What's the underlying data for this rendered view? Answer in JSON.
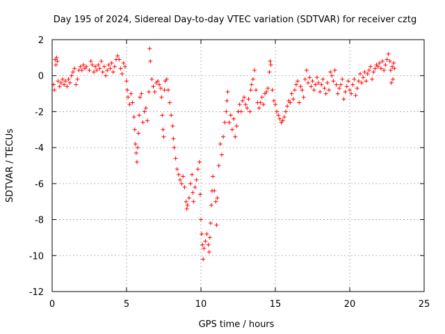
{
  "chart_data": {
    "type": "scatter",
    "title": "Day 195 of 2024, Sidereal Day-to-day VTEC variation (SDTVAR) for receiver cztg",
    "xlabel": "GPS time / hours",
    "ylabel": "SDTVAR / TECUs",
    "xlim": [
      0,
      25
    ],
    "ylim": [
      -12,
      2
    ],
    "xticks": [
      0,
      5,
      10,
      15,
      20,
      25
    ],
    "xtick_labels": [
      "0",
      "5",
      "10",
      "15",
      "20",
      "25"
    ],
    "yticks": [
      2,
      0,
      -2,
      -4,
      -6,
      -8,
      -10,
      -12
    ],
    "ytick_labels": [
      "2",
      "0",
      "-2",
      "-4",
      "-6",
      "-8",
      "-10",
      "-12"
    ],
    "grid": true,
    "marker": "+",
    "color": "#ff0000",
    "series": [
      {
        "name": "SDTVAR",
        "points": [
          [
            0.1,
            -0.5
          ],
          [
            0.15,
            -0.8
          ],
          [
            0.2,
            0.9
          ],
          [
            0.25,
            0.6
          ],
          [
            0.3,
            1.0
          ],
          [
            0.35,
            0.8
          ],
          [
            0.4,
            -0.3
          ],
          [
            0.5,
            -0.6
          ],
          [
            0.6,
            -0.4
          ],
          [
            0.7,
            -0.2
          ],
          [
            0.8,
            -0.5
          ],
          [
            0.9,
            -0.3
          ],
          [
            1.0,
            -0.6
          ],
          [
            1.1,
            -0.2
          ],
          [
            1.2,
            -0.4
          ],
          [
            1.3,
            0.0
          ],
          [
            1.4,
            0.2
          ],
          [
            1.5,
            0.4
          ],
          [
            1.6,
            -0.5
          ],
          [
            1.7,
            -0.2
          ],
          [
            1.8,
            0.3
          ],
          [
            1.9,
            0.5
          ],
          [
            2.0,
            0.3
          ],
          [
            2.1,
            0.6
          ],
          [
            2.2,
            0.4
          ],
          [
            2.3,
            0.5
          ],
          [
            2.5,
            0.3
          ],
          [
            2.6,
            0.8
          ],
          [
            2.7,
            0.6
          ],
          [
            2.8,
            0.2
          ],
          [
            2.9,
            0.5
          ],
          [
            3.0,
            0.3
          ],
          [
            3.1,
            0.6
          ],
          [
            3.2,
            0.4
          ],
          [
            3.3,
            0.8
          ],
          [
            3.4,
            0.2
          ],
          [
            3.5,
            0.5
          ],
          [
            3.6,
            0.0
          ],
          [
            3.7,
            0.3
          ],
          [
            3.8,
            0.6
          ],
          [
            3.9,
            0.4
          ],
          [
            4.0,
            0.7
          ],
          [
            4.1,
            0.2
          ],
          [
            4.2,
            0.5
          ],
          [
            4.3,
            0.9
          ],
          [
            4.4,
            1.1
          ],
          [
            4.5,
            0.9
          ],
          [
            4.6,
            0.4
          ],
          [
            4.7,
            0.1
          ],
          [
            4.8,
            0.7
          ],
          [
            4.9,
            0.5
          ],
          [
            5.0,
            -0.3
          ],
          [
            5.05,
            -0.8
          ],
          [
            5.1,
            -1.2
          ],
          [
            5.2,
            -1.6
          ],
          [
            5.3,
            -1.0
          ],
          [
            5.4,
            -1.5
          ],
          [
            5.5,
            -2.3
          ],
          [
            5.55,
            -3.0
          ],
          [
            5.6,
            -3.8
          ],
          [
            5.65,
            -4.3
          ],
          [
            5.7,
            -4.8
          ],
          [
            5.75,
            -4.0
          ],
          [
            5.8,
            -3.2
          ],
          [
            5.85,
            -2.2
          ],
          [
            5.9,
            -1.2
          ],
          [
            6.0,
            -1.0
          ],
          [
            6.1,
            -2.6
          ],
          [
            6.2,
            -2.0
          ],
          [
            6.3,
            -1.8
          ],
          [
            6.4,
            -2.5
          ],
          [
            6.5,
            -0.9
          ],
          [
            6.55,
            1.5
          ],
          [
            6.6,
            0.8
          ],
          [
            6.7,
            -0.2
          ],
          [
            6.8,
            -0.6
          ],
          [
            6.9,
            -0.9
          ],
          [
            7.0,
            -0.4
          ],
          [
            7.1,
            -0.3
          ],
          [
            7.2,
            -0.5
          ],
          [
            7.3,
            -0.7
          ],
          [
            7.35,
            -1.2
          ],
          [
            7.4,
            -2.2
          ],
          [
            7.45,
            -3.0
          ],
          [
            7.5,
            -3.4
          ],
          [
            7.55,
            -0.8
          ],
          [
            7.6,
            -0.3
          ],
          [
            7.7,
            -0.2
          ],
          [
            7.8,
            -0.8
          ],
          [
            7.9,
            -1.5
          ],
          [
            8.0,
            -2.2
          ],
          [
            8.1,
            -2.8
          ],
          [
            8.15,
            -3.5
          ],
          [
            8.2,
            -4.0
          ],
          [
            8.3,
            -4.6
          ],
          [
            8.4,
            -5.2
          ],
          [
            8.5,
            -5.5
          ],
          [
            8.6,
            -5.8
          ],
          [
            8.7,
            -6.0
          ],
          [
            8.8,
            -5.6
          ],
          [
            8.9,
            -6.2
          ],
          [
            9.0,
            -7.0
          ],
          [
            9.05,
            -7.4
          ],
          [
            9.1,
            -7.2
          ],
          [
            9.2,
            -6.8
          ],
          [
            9.3,
            -6.0
          ],
          [
            9.4,
            -5.5
          ],
          [
            9.45,
            -6.5
          ],
          [
            9.5,
            -7.0
          ],
          [
            9.6,
            -6.2
          ],
          [
            9.7,
            -5.8
          ],
          [
            9.8,
            -5.2
          ],
          [
            9.9,
            -4.8
          ],
          [
            9.95,
            -6.6
          ],
          [
            10.0,
            -8.0
          ],
          [
            10.05,
            -8.8
          ],
          [
            10.1,
            -9.4
          ],
          [
            10.15,
            -10.2
          ],
          [
            10.2,
            -9.6
          ],
          [
            10.3,
            -9.2
          ],
          [
            10.4,
            -8.8
          ],
          [
            10.5,
            -9.4
          ],
          [
            10.55,
            -9.8
          ],
          [
            10.6,
            -9.0
          ],
          [
            10.65,
            -8.2
          ],
          [
            10.7,
            -7.2
          ],
          [
            10.75,
            -6.4
          ],
          [
            10.8,
            -5.6
          ],
          [
            10.9,
            -6.4
          ],
          [
            11.0,
            -7.0
          ],
          [
            11.05,
            -8.3
          ],
          [
            11.1,
            -6.8
          ],
          [
            11.2,
            -5.0
          ],
          [
            11.3,
            -3.8
          ],
          [
            11.4,
            -4.4
          ],
          [
            11.5,
            -3.4
          ],
          [
            11.6,
            -2.6
          ],
          [
            11.7,
            -2.0
          ],
          [
            11.75,
            -1.4
          ],
          [
            11.8,
            -0.9
          ],
          [
            11.9,
            -2.6
          ],
          [
            12.0,
            -2.2
          ],
          [
            12.1,
            -3.0
          ],
          [
            12.2,
            -2.4
          ],
          [
            12.3,
            -3.4
          ],
          [
            12.4,
            -2.8
          ],
          [
            12.5,
            -2.0
          ],
          [
            12.6,
            -1.6
          ],
          [
            12.7,
            -2.0
          ],
          [
            12.8,
            -1.4
          ],
          [
            12.9,
            -1.2
          ],
          [
            13.0,
            -1.6
          ],
          [
            13.1,
            -1.8
          ],
          [
            13.2,
            -1.3
          ],
          [
            13.3,
            -2.0
          ],
          [
            13.35,
            -0.8
          ],
          [
            13.4,
            -0.5
          ],
          [
            13.5,
            -0.2
          ],
          [
            13.6,
            0.3
          ],
          [
            13.7,
            -0.8
          ],
          [
            13.8,
            -1.5
          ],
          [
            13.9,
            -1.8
          ],
          [
            14.0,
            -1.5
          ],
          [
            14.1,
            -1.2
          ],
          [
            14.2,
            -1.6
          ],
          [
            14.3,
            -1.0
          ],
          [
            14.4,
            -0.9
          ],
          [
            14.5,
            -0.7
          ],
          [
            14.6,
            0.2
          ],
          [
            14.65,
            0.8
          ],
          [
            14.7,
            0.6
          ],
          [
            14.8,
            -0.8
          ],
          [
            14.9,
            -1.4
          ],
          [
            15.0,
            -1.6
          ],
          [
            15.1,
            -2.0
          ],
          [
            15.2,
            -2.2
          ],
          [
            15.3,
            -2.4
          ],
          [
            15.4,
            -2.6
          ],
          [
            15.5,
            -2.5
          ],
          [
            15.6,
            -2.3
          ],
          [
            15.7,
            -2.0
          ],
          [
            15.8,
            -1.7
          ],
          [
            15.9,
            -1.4
          ],
          [
            16.0,
            -1.5
          ],
          [
            16.1,
            -1.0
          ],
          [
            16.2,
            -1.3
          ],
          [
            16.3,
            -0.8
          ],
          [
            16.4,
            -0.5
          ],
          [
            16.5,
            -0.3
          ],
          [
            16.6,
            -1.5
          ],
          [
            16.7,
            -0.6
          ],
          [
            16.8,
            -0.8
          ],
          [
            16.9,
            -1.2
          ],
          [
            17.0,
            -0.2
          ],
          [
            17.1,
            0.3
          ],
          [
            17.2,
            -0.4
          ],
          [
            17.3,
            -0.1
          ],
          [
            17.4,
            -0.6
          ],
          [
            17.5,
            -0.3
          ],
          [
            17.6,
            -0.8
          ],
          [
            17.7,
            -0.5
          ],
          [
            17.8,
            -0.1
          ],
          [
            17.9,
            -0.4
          ],
          [
            18.0,
            -0.9
          ],
          [
            18.1,
            -0.5
          ],
          [
            18.2,
            -0.2
          ],
          [
            18.3,
            -0.7
          ],
          [
            18.4,
            -1.0
          ],
          [
            18.5,
            -0.4
          ],
          [
            18.6,
            -0.8
          ],
          [
            18.7,
            0.2
          ],
          [
            18.8,
            0.0
          ],
          [
            18.9,
            -0.3
          ],
          [
            19.0,
            0.3
          ],
          [
            19.1,
            -0.5
          ],
          [
            19.2,
            -1.0
          ],
          [
            19.3,
            -0.7
          ],
          [
            19.4,
            -0.5
          ],
          [
            19.5,
            -0.2
          ],
          [
            19.6,
            -1.3
          ],
          [
            19.7,
            -0.9
          ],
          [
            19.8,
            -0.6
          ],
          [
            19.9,
            -0.3
          ],
          [
            20.0,
            -0.8
          ],
          [
            20.1,
            -1.0
          ],
          [
            20.2,
            -0.5
          ],
          [
            20.3,
            -0.2
          ],
          [
            20.4,
            -1.1
          ],
          [
            20.5,
            -0.7
          ],
          [
            20.6,
            -0.3
          ],
          [
            20.7,
            0.1
          ],
          [
            20.8,
            -0.4
          ],
          [
            20.9,
            -0.1
          ],
          [
            21.0,
            0.2
          ],
          [
            21.1,
            -0.3
          ],
          [
            21.2,
            0.1
          ],
          [
            21.3,
            0.3
          ],
          [
            21.4,
            0.5
          ],
          [
            21.5,
            -0.2
          ],
          [
            21.6,
            0.2
          ],
          [
            21.7,
            0.4
          ],
          [
            21.8,
            0.6
          ],
          [
            21.9,
            0.5
          ],
          [
            22.0,
            0.7
          ],
          [
            22.1,
            0.4
          ],
          [
            22.2,
            0.8
          ],
          [
            22.3,
            0.3
          ],
          [
            22.4,
            0.6
          ],
          [
            22.5,
            0.9
          ],
          [
            22.6,
            1.2
          ],
          [
            22.7,
            0.8
          ],
          [
            22.75,
            0.3
          ],
          [
            22.8,
            -0.4
          ],
          [
            22.85,
            0.5
          ],
          [
            22.9,
            -0.2
          ],
          [
            22.95,
            0.7
          ],
          [
            23.0,
            0.4
          ]
        ]
      }
    ]
  }
}
